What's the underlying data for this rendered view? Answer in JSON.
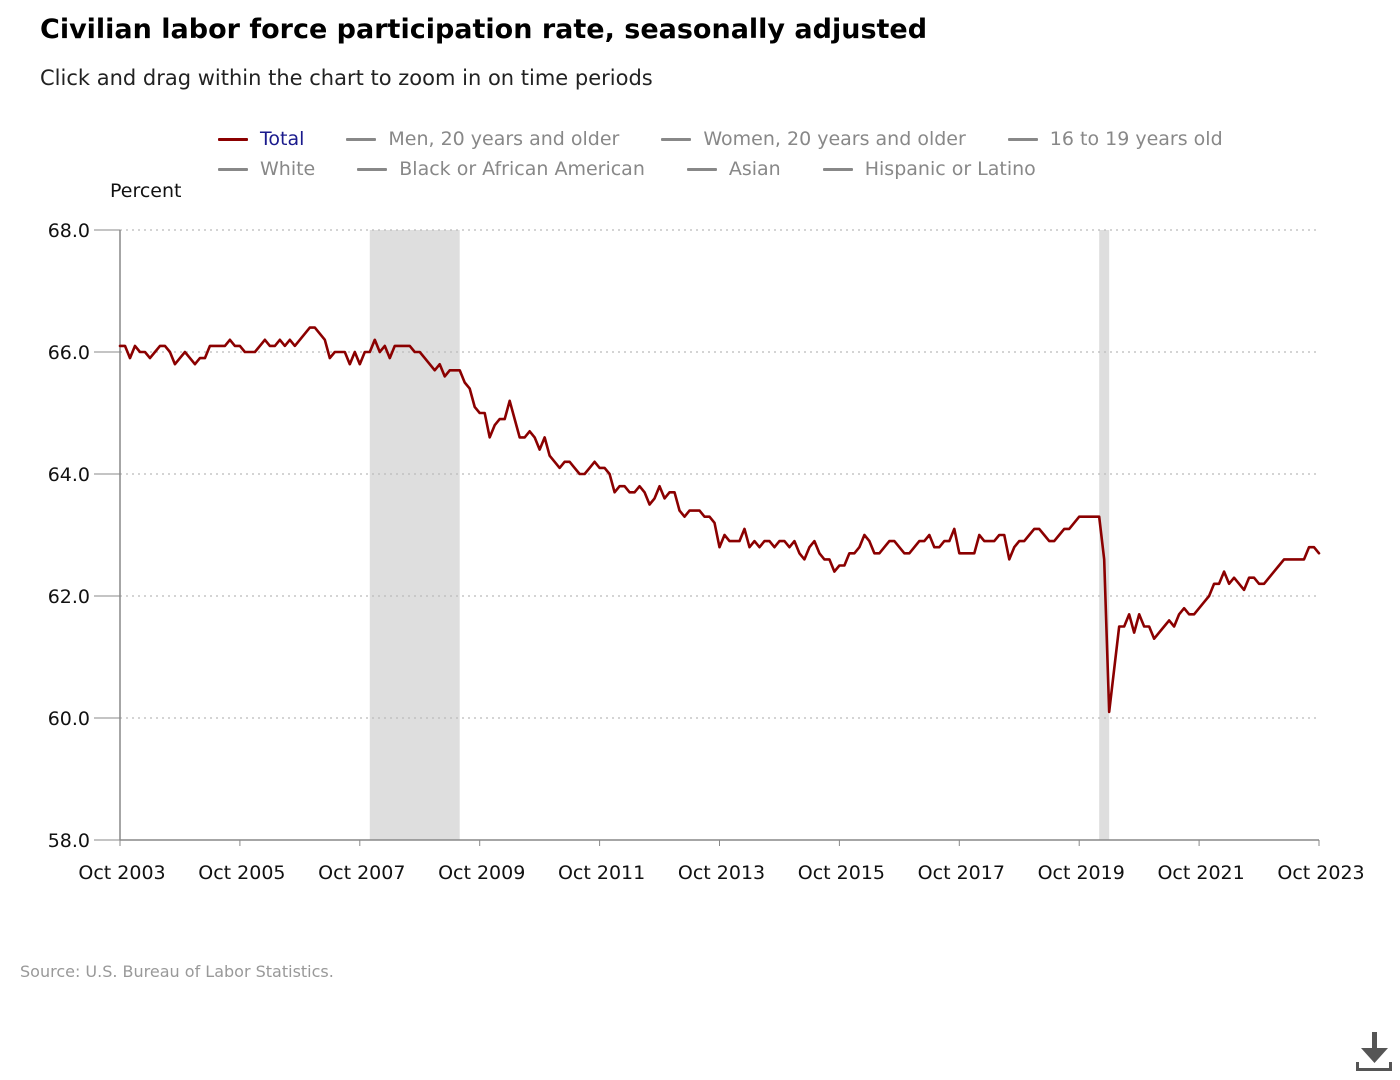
{
  "header": {
    "title": "Civilian labor force participation rate, seasonally adjusted",
    "subtitle": "Click and drag within the chart to zoom in on time periods"
  },
  "legend": {
    "rows": [
      [
        {
          "label": "Total",
          "active": true
        },
        {
          "label": "Men, 20 years and older",
          "active": false
        },
        {
          "label": "Women, 20 years and older",
          "active": false
        },
        {
          "label": "16 to 19 years old",
          "active": false
        }
      ],
      [
        {
          "label": "White",
          "active": false
        },
        {
          "label": "Black or African American",
          "active": false
        },
        {
          "label": "Asian",
          "active": false
        },
        {
          "label": "Hispanic or Latino",
          "active": false
        }
      ]
    ]
  },
  "colors": {
    "series": "#8b0000",
    "legend_active_text": "#1a1a8c",
    "legend_inactive": "#888888",
    "recession_band": "#dedede",
    "grid": "#bbbbbb"
  },
  "source": "Source: U.S. Bureau of Labor Statistics.",
  "download_icon": "download-icon",
  "chart_data": {
    "type": "line",
    "ylabel": "Percent",
    "ylim": [
      58.0,
      68.0
    ],
    "yticks": [
      "68.0",
      "66.0",
      "64.0",
      "62.0",
      "60.0",
      "58.0"
    ],
    "xlim": [
      "2003-10",
      "2023-10"
    ],
    "xticks": [
      "Oct 2003",
      "Oct 2005",
      "Oct 2007",
      "Oct 2009",
      "Oct 2011",
      "Oct 2013",
      "Oct 2015",
      "Oct 2017",
      "Oct 2019",
      "Oct 2021",
      "Oct 2023"
    ],
    "grid": "horizontal dotted",
    "recessions": [
      {
        "start": "2007-12",
        "end": "2009-06"
      },
      {
        "start": "2020-02",
        "end": "2020-04"
      }
    ],
    "series": [
      {
        "name": "Total",
        "points": [
          [
            "2003-10",
            66.1
          ],
          [
            "2003-11",
            66.1
          ],
          [
            "2003-12",
            65.9
          ],
          [
            "2004-01",
            66.1
          ],
          [
            "2004-02",
            66.0
          ],
          [
            "2004-03",
            66.0
          ],
          [
            "2004-04",
            65.9
          ],
          [
            "2004-05",
            66.0
          ],
          [
            "2004-06",
            66.1
          ],
          [
            "2004-07",
            66.1
          ],
          [
            "2004-08",
            66.0
          ],
          [
            "2004-09",
            65.8
          ],
          [
            "2004-10",
            65.9
          ],
          [
            "2004-11",
            66.0
          ],
          [
            "2004-12",
            65.9
          ],
          [
            "2005-01",
            65.8
          ],
          [
            "2005-02",
            65.9
          ],
          [
            "2005-03",
            65.9
          ],
          [
            "2005-04",
            66.1
          ],
          [
            "2005-05",
            66.1
          ],
          [
            "2005-06",
            66.1
          ],
          [
            "2005-07",
            66.1
          ],
          [
            "2005-08",
            66.2
          ],
          [
            "2005-09",
            66.1
          ],
          [
            "2005-10",
            66.1
          ],
          [
            "2005-11",
            66.0
          ],
          [
            "2005-12",
            66.0
          ],
          [
            "2006-01",
            66.0
          ],
          [
            "2006-02",
            66.1
          ],
          [
            "2006-03",
            66.2
          ],
          [
            "2006-04",
            66.1
          ],
          [
            "2006-05",
            66.1
          ],
          [
            "2006-06",
            66.2
          ],
          [
            "2006-07",
            66.1
          ],
          [
            "2006-08",
            66.2
          ],
          [
            "2006-09",
            66.1
          ],
          [
            "2006-10",
            66.2
          ],
          [
            "2006-11",
            66.3
          ],
          [
            "2006-12",
            66.4
          ],
          [
            "2007-01",
            66.4
          ],
          [
            "2007-02",
            66.3
          ],
          [
            "2007-03",
            66.2
          ],
          [
            "2007-04",
            65.9
          ],
          [
            "2007-05",
            66.0
          ],
          [
            "2007-06",
            66.0
          ],
          [
            "2007-07",
            66.0
          ],
          [
            "2007-08",
            65.8
          ],
          [
            "2007-09",
            66.0
          ],
          [
            "2007-10",
            65.8
          ],
          [
            "2007-11",
            66.0
          ],
          [
            "2007-12",
            66.0
          ],
          [
            "2008-01",
            66.2
          ],
          [
            "2008-02",
            66.0
          ],
          [
            "2008-03",
            66.1
          ],
          [
            "2008-04",
            65.9
          ],
          [
            "2008-05",
            66.1
          ],
          [
            "2008-06",
            66.1
          ],
          [
            "2008-07",
            66.1
          ],
          [
            "2008-08",
            66.1
          ],
          [
            "2008-09",
            66.0
          ],
          [
            "2008-10",
            66.0
          ],
          [
            "2008-11",
            65.9
          ],
          [
            "2008-12",
            65.8
          ],
          [
            "2009-01",
            65.7
          ],
          [
            "2009-02",
            65.8
          ],
          [
            "2009-03",
            65.6
          ],
          [
            "2009-04",
            65.7
          ],
          [
            "2009-05",
            65.7
          ],
          [
            "2009-06",
            65.7
          ],
          [
            "2009-07",
            65.5
          ],
          [
            "2009-08",
            65.4
          ],
          [
            "2009-09",
            65.1
          ],
          [
            "2009-10",
            65.0
          ],
          [
            "2009-11",
            65.0
          ],
          [
            "2009-12",
            64.6
          ],
          [
            "2010-01",
            64.8
          ],
          [
            "2010-02",
            64.9
          ],
          [
            "2010-03",
            64.9
          ],
          [
            "2010-04",
            65.2
          ],
          [
            "2010-05",
            64.9
          ],
          [
            "2010-06",
            64.6
          ],
          [
            "2010-07",
            64.6
          ],
          [
            "2010-08",
            64.7
          ],
          [
            "2010-09",
            64.6
          ],
          [
            "2010-10",
            64.4
          ],
          [
            "2010-11",
            64.6
          ],
          [
            "2010-12",
            64.3
          ],
          [
            "2011-01",
            64.2
          ],
          [
            "2011-02",
            64.1
          ],
          [
            "2011-03",
            64.2
          ],
          [
            "2011-04",
            64.2
          ],
          [
            "2011-05",
            64.1
          ],
          [
            "2011-06",
            64.0
          ],
          [
            "2011-07",
            64.0
          ],
          [
            "2011-08",
            64.1
          ],
          [
            "2011-09",
            64.2
          ],
          [
            "2011-10",
            64.1
          ],
          [
            "2011-11",
            64.1
          ],
          [
            "2011-12",
            64.0
          ],
          [
            "2012-01",
            63.7
          ],
          [
            "2012-02",
            63.8
          ],
          [
            "2012-03",
            63.8
          ],
          [
            "2012-04",
            63.7
          ],
          [
            "2012-05",
            63.7
          ],
          [
            "2012-06",
            63.8
          ],
          [
            "2012-07",
            63.7
          ],
          [
            "2012-08",
            63.5
          ],
          [
            "2012-09",
            63.6
          ],
          [
            "2012-10",
            63.8
          ],
          [
            "2012-11",
            63.6
          ],
          [
            "2012-12",
            63.7
          ],
          [
            "2013-01",
            63.7
          ],
          [
            "2013-02",
            63.4
          ],
          [
            "2013-03",
            63.3
          ],
          [
            "2013-04",
            63.4
          ],
          [
            "2013-05",
            63.4
          ],
          [
            "2013-06",
            63.4
          ],
          [
            "2013-07",
            63.3
          ],
          [
            "2013-08",
            63.3
          ],
          [
            "2013-09",
            63.2
          ],
          [
            "2013-10",
            62.8
          ],
          [
            "2013-11",
            63.0
          ],
          [
            "2013-12",
            62.9
          ],
          [
            "2014-01",
            62.9
          ],
          [
            "2014-02",
            62.9
          ],
          [
            "2014-03",
            63.1
          ],
          [
            "2014-04",
            62.8
          ],
          [
            "2014-05",
            62.9
          ],
          [
            "2014-06",
            62.8
          ],
          [
            "2014-07",
            62.9
          ],
          [
            "2014-08",
            62.9
          ],
          [
            "2014-09",
            62.8
          ],
          [
            "2014-10",
            62.9
          ],
          [
            "2014-11",
            62.9
          ],
          [
            "2014-12",
            62.8
          ],
          [
            "2015-01",
            62.9
          ],
          [
            "2015-02",
            62.7
          ],
          [
            "2015-03",
            62.6
          ],
          [
            "2015-04",
            62.8
          ],
          [
            "2015-05",
            62.9
          ],
          [
            "2015-06",
            62.7
          ],
          [
            "2015-07",
            62.6
          ],
          [
            "2015-08",
            62.6
          ],
          [
            "2015-09",
            62.4
          ],
          [
            "2015-10",
            62.5
          ],
          [
            "2015-11",
            62.5
          ],
          [
            "2015-12",
            62.7
          ],
          [
            "2016-01",
            62.7
          ],
          [
            "2016-02",
            62.8
          ],
          [
            "2016-03",
            63.0
          ],
          [
            "2016-04",
            62.9
          ],
          [
            "2016-05",
            62.7
          ],
          [
            "2016-06",
            62.7
          ],
          [
            "2016-07",
            62.8
          ],
          [
            "2016-08",
            62.9
          ],
          [
            "2016-09",
            62.9
          ],
          [
            "2016-10",
            62.8
          ],
          [
            "2016-11",
            62.7
          ],
          [
            "2016-12",
            62.7
          ],
          [
            "2017-01",
            62.8
          ],
          [
            "2017-02",
            62.9
          ],
          [
            "2017-03",
            62.9
          ],
          [
            "2017-04",
            63.0
          ],
          [
            "2017-05",
            62.8
          ],
          [
            "2017-06",
            62.8
          ],
          [
            "2017-07",
            62.9
          ],
          [
            "2017-08",
            62.9
          ],
          [
            "2017-09",
            63.1
          ],
          [
            "2017-10",
            62.7
          ],
          [
            "2017-11",
            62.7
          ],
          [
            "2017-12",
            62.7
          ],
          [
            "2018-01",
            62.7
          ],
          [
            "2018-02",
            63.0
          ],
          [
            "2018-03",
            62.9
          ],
          [
            "2018-04",
            62.9
          ],
          [
            "2018-05",
            62.9
          ],
          [
            "2018-06",
            63.0
          ],
          [
            "2018-07",
            63.0
          ],
          [
            "2018-08",
            62.6
          ],
          [
            "2018-09",
            62.8
          ],
          [
            "2018-10",
            62.9
          ],
          [
            "2018-11",
            62.9
          ],
          [
            "2018-12",
            63.0
          ],
          [
            "2019-01",
            63.1
          ],
          [
            "2019-02",
            63.1
          ],
          [
            "2019-03",
            63.0
          ],
          [
            "2019-04",
            62.9
          ],
          [
            "2019-05",
            62.9
          ],
          [
            "2019-06",
            63.0
          ],
          [
            "2019-07",
            63.1
          ],
          [
            "2019-08",
            63.1
          ],
          [
            "2019-09",
            63.2
          ],
          [
            "2019-10",
            63.3
          ],
          [
            "2019-11",
            63.3
          ],
          [
            "2019-12",
            63.3
          ],
          [
            "2020-01",
            63.3
          ],
          [
            "2020-02",
            63.3
          ],
          [
            "2020-03",
            62.6
          ],
          [
            "2020-04",
            60.1
          ],
          [
            "2020-05",
            60.8
          ],
          [
            "2020-06",
            61.5
          ],
          [
            "2020-07",
            61.5
          ],
          [
            "2020-08",
            61.7
          ],
          [
            "2020-09",
            61.4
          ],
          [
            "2020-10",
            61.7
          ],
          [
            "2020-11",
            61.5
          ],
          [
            "2020-12",
            61.5
          ],
          [
            "2021-01",
            61.3
          ],
          [
            "2021-02",
            61.4
          ],
          [
            "2021-03",
            61.5
          ],
          [
            "2021-04",
            61.6
          ],
          [
            "2021-05",
            61.5
          ],
          [
            "2021-06",
            61.7
          ],
          [
            "2021-07",
            61.8
          ],
          [
            "2021-08",
            61.7
          ],
          [
            "2021-09",
            61.7
          ],
          [
            "2021-10",
            61.8
          ],
          [
            "2021-11",
            61.9
          ],
          [
            "2021-12",
            62.0
          ],
          [
            "2022-01",
            62.2
          ],
          [
            "2022-02",
            62.2
          ],
          [
            "2022-03",
            62.4
          ],
          [
            "2022-04",
            62.2
          ],
          [
            "2022-05",
            62.3
          ],
          [
            "2022-06",
            62.2
          ],
          [
            "2022-07",
            62.1
          ],
          [
            "2022-08",
            62.3
          ],
          [
            "2022-09",
            62.3
          ],
          [
            "2022-10",
            62.2
          ],
          [
            "2022-11",
            62.2
          ],
          [
            "2022-12",
            62.3
          ],
          [
            "2023-01",
            62.4
          ],
          [
            "2023-02",
            62.5
          ],
          [
            "2023-03",
            62.6
          ],
          [
            "2023-04",
            62.6
          ],
          [
            "2023-05",
            62.6
          ],
          [
            "2023-06",
            62.6
          ],
          [
            "2023-07",
            62.6
          ],
          [
            "2023-08",
            62.8
          ],
          [
            "2023-09",
            62.8
          ],
          [
            "2023-10",
            62.7
          ]
        ]
      }
    ]
  }
}
